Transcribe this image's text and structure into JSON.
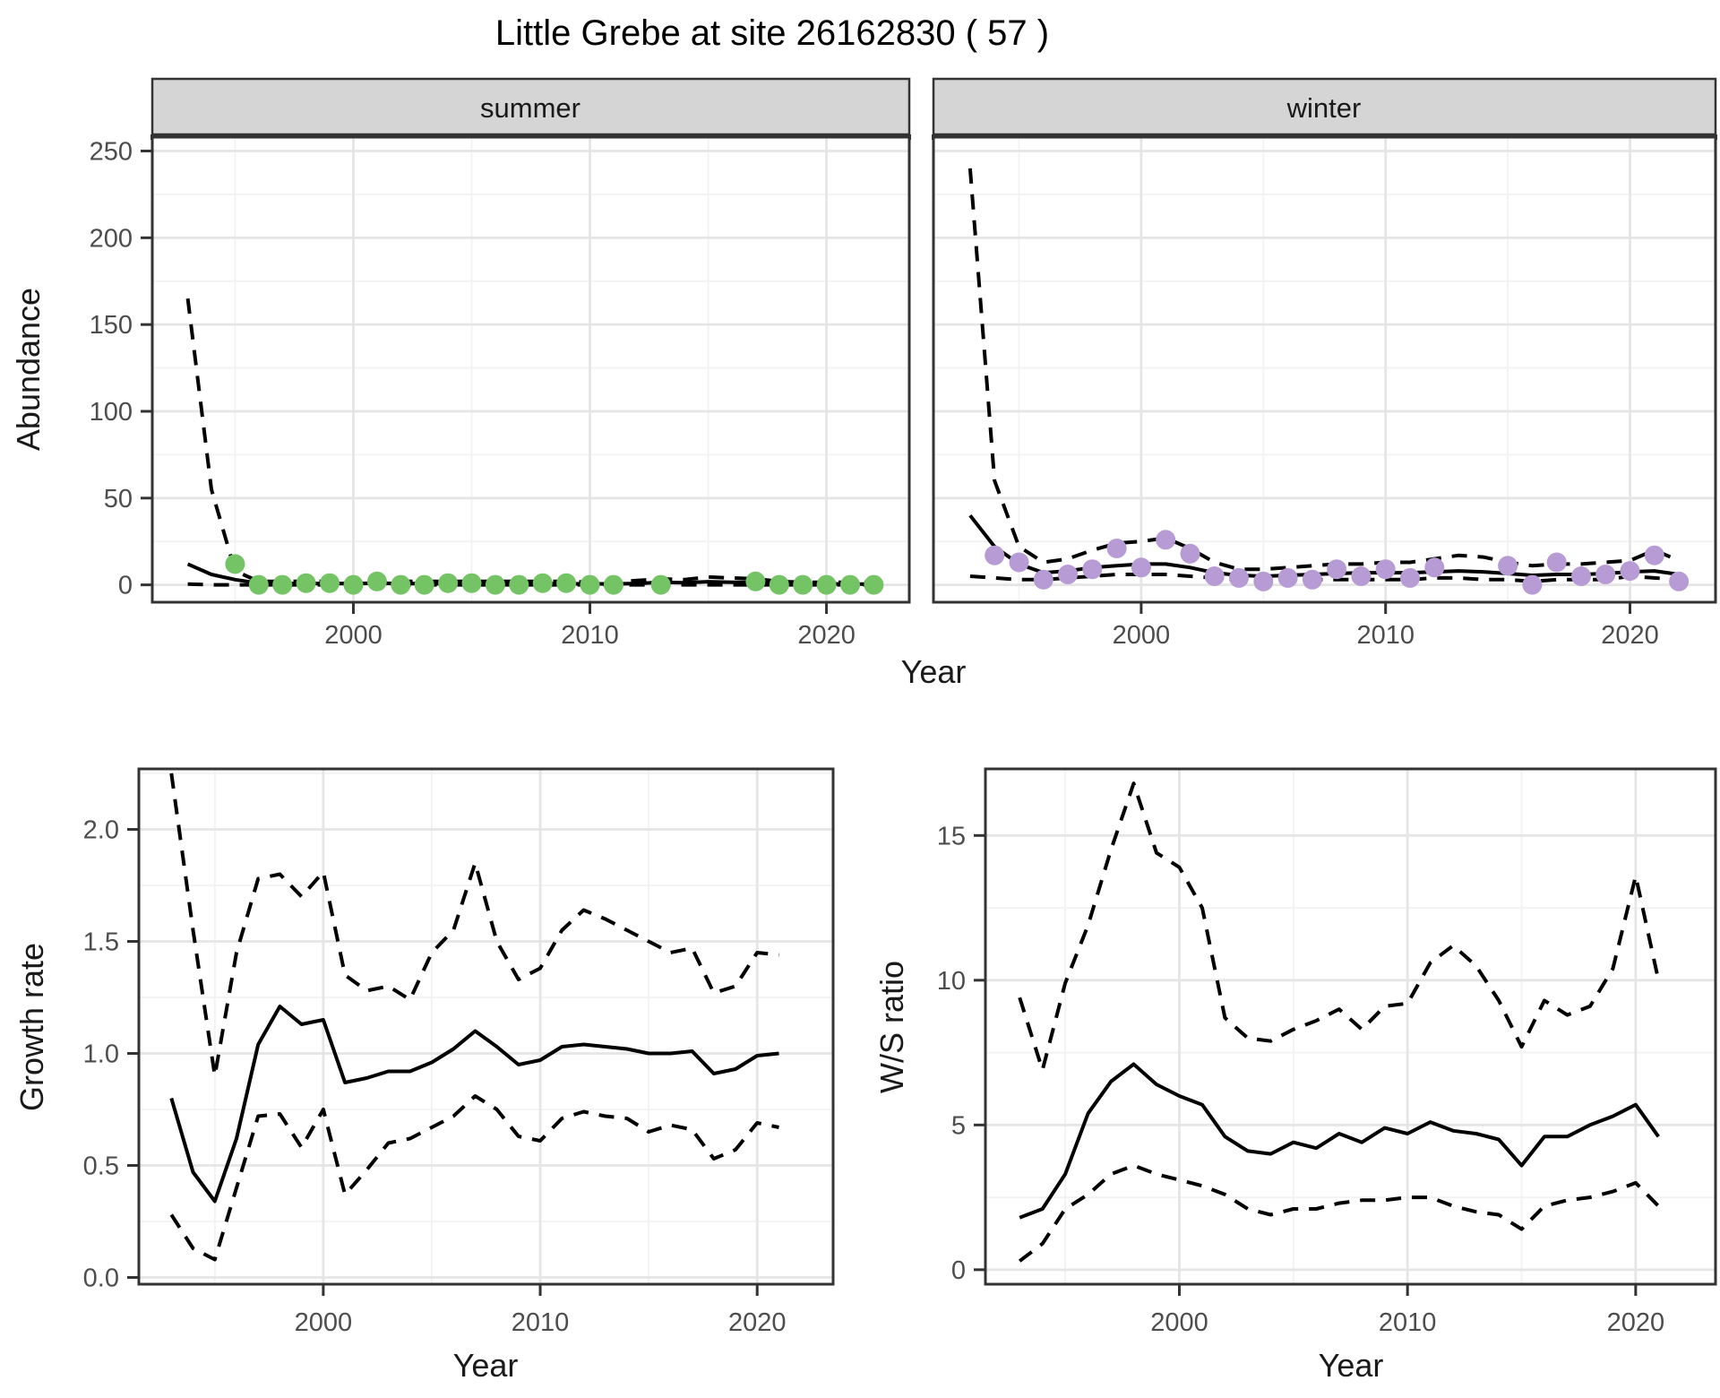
{
  "title": "Little Grebe at site 26162830 ( 57 )",
  "colors": {
    "summer_points": "#74c365",
    "winter_points": "#b79bd4",
    "line": "#000000",
    "grid_major": "#e5e5e5",
    "grid_minor": "#f2f2f2",
    "strip_bg": "#d5d5d5",
    "panel_border": "#333333",
    "tick_text": "#4d4d4d"
  },
  "chart_data": [
    {
      "id": "abundance_summer",
      "type": "line",
      "facet_label": "summer",
      "xlabel": "Year",
      "ylabel": "Abundance",
      "xlim": [
        1991.5,
        2023.5
      ],
      "ylim": [
        -10,
        258
      ],
      "x_ticks": [
        2000,
        2010,
        2020
      ],
      "x_tick_labels": [
        "2000",
        "2010",
        "2020"
      ],
      "x_minor": [
        1995,
        2005,
        2015
      ],
      "y_ticks": [
        0,
        50,
        100,
        150,
        200,
        250
      ],
      "y_tick_labels": [
        "0",
        "50",
        "100",
        "150",
        "200",
        "250"
      ],
      "y_minor": [
        25,
        75,
        125,
        175,
        225
      ],
      "grid": true,
      "legend": "none",
      "series": [
        {
          "name": "fit",
          "style": "solid",
          "x": [
            1993,
            1994,
            1995,
            1996,
            1997,
            1998,
            1999,
            2000,
            2001,
            2002,
            2003,
            2004,
            2005,
            2006,
            2007,
            2008,
            2009,
            2010,
            2011,
            2012,
            2013,
            2014,
            2015,
            2016,
            2017,
            2018,
            2019,
            2020,
            2021,
            2022
          ],
          "y": [
            12,
            6,
            3,
            1,
            0.8,
            0.8,
            0.8,
            0.8,
            1,
            0.8,
            0.7,
            0.7,
            0.7,
            0.7,
            0.7,
            0.7,
            0.7,
            0.6,
            0.6,
            0.8,
            1.5,
            1.2,
            1.8,
            1.5,
            1.5,
            0.8,
            0.6,
            0.6,
            0.5,
            0.5
          ]
        },
        {
          "name": "upper_ci",
          "style": "dashed",
          "x": [
            1993,
            1994,
            1995,
            1996,
            1997,
            1998,
            1999,
            2000,
            2001,
            2002,
            2003,
            2004,
            2005,
            2006,
            2007,
            2008,
            2009,
            2010,
            2011,
            2012,
            2013,
            2014,
            2015,
            2016,
            2017,
            2018,
            2019,
            2020,
            2021,
            2022
          ],
          "y": [
            165,
            55,
            8,
            2,
            2,
            2,
            2,
            2,
            2.5,
            2,
            2,
            2,
            2,
            2,
            2,
            2,
            2,
            1.5,
            1.5,
            2.5,
            3.5,
            3,
            4.5,
            4,
            3.5,
            2,
            1.5,
            1.5,
            1.5,
            1.5
          ]
        },
        {
          "name": "lower_ci",
          "style": "dashed",
          "x": [
            1993,
            1994,
            1995,
            1996,
            1997,
            1998,
            1999,
            2000,
            2001,
            2002,
            2003,
            2004,
            2005,
            2006,
            2007,
            2008,
            2009,
            2010,
            2011,
            2012,
            2013,
            2014,
            2015,
            2016,
            2017,
            2018,
            2019,
            2020,
            2021,
            2022
          ],
          "y": [
            0.5,
            0,
            0,
            0,
            0,
            0,
            0,
            0,
            0,
            0,
            0,
            0,
            0,
            0,
            0,
            0,
            0,
            0,
            0,
            0,
            0,
            0,
            0,
            0,
            0,
            0,
            0,
            0,
            0,
            0
          ]
        }
      ],
      "points": {
        "name": "observed_counts",
        "color": "#74c365",
        "x": [
          1995,
          1996,
          1997,
          1998,
          1999,
          2000,
          2001,
          2002,
          2003,
          2004,
          2005,
          2006,
          2007,
          2008,
          2009,
          2010,
          2011,
          2013,
          2017,
          2018,
          2019,
          2020,
          2021,
          2022
        ],
        "y": [
          12,
          0,
          0,
          1,
          1,
          0,
          2,
          0,
          0,
          1,
          1,
          0,
          0,
          1,
          1,
          0,
          0,
          0,
          2,
          0,
          0,
          0,
          0,
          0
        ]
      }
    },
    {
      "id": "abundance_winter",
      "type": "line",
      "facet_label": "winter",
      "xlabel": "Year",
      "ylabel": "Abundance",
      "xlim": [
        1991.5,
        2023.5
      ],
      "ylim": [
        -10,
        258
      ],
      "x_ticks": [
        2000,
        2010,
        2020
      ],
      "x_tick_labels": [
        "2000",
        "2010",
        "2020"
      ],
      "x_minor": [
        1995,
        2005,
        2015
      ],
      "y_ticks": [
        0,
        50,
        100,
        150,
        200,
        250
      ],
      "y_tick_labels": [
        "0",
        "50",
        "100",
        "150",
        "200",
        "250"
      ],
      "y_minor": [
        25,
        75,
        125,
        175,
        225
      ],
      "grid": true,
      "legend": "none",
      "series": [
        {
          "name": "fit",
          "style": "solid",
          "x": [
            1993,
            1994,
            1995,
            1996,
            1997,
            1998,
            1999,
            2000,
            2001,
            2002,
            2003,
            2004,
            2005,
            2006,
            2007,
            2008,
            2009,
            2010,
            2011,
            2012,
            2013,
            2014,
            2015,
            2016,
            2017,
            2018,
            2019,
            2020,
            2021,
            2022
          ],
          "y": [
            40,
            22,
            12,
            7,
            8,
            10,
            11,
            12,
            12,
            10,
            7,
            5.5,
            5,
            5.5,
            6,
            6.5,
            7,
            7,
            7,
            7.5,
            8,
            7.5,
            6.5,
            5.5,
            6,
            6,
            6.5,
            7.5,
            8,
            6
          ]
        },
        {
          "name": "upper_ci",
          "style": "dashed",
          "x": [
            1993,
            1994,
            1995,
            1996,
            1997,
            1998,
            1999,
            2000,
            2001,
            2002,
            2003,
            2004,
            2005,
            2006,
            2007,
            2008,
            2009,
            2010,
            2011,
            2012,
            2013,
            2014,
            2015,
            2016,
            2017,
            2018,
            2019,
            2020,
            2021,
            2022
          ],
          "y": [
            240,
            60,
            22,
            13,
            15,
            20,
            24,
            25,
            27,
            21,
            13,
            9,
            9,
            10,
            11,
            12,
            12,
            13,
            13,
            15,
            17,
            16,
            13,
            11,
            12,
            12,
            13,
            14,
            20,
            14
          ]
        },
        {
          "name": "lower_ci",
          "style": "dashed",
          "x": [
            1993,
            1994,
            1995,
            1996,
            1997,
            1998,
            1999,
            2000,
            2001,
            2002,
            2003,
            2004,
            2005,
            2006,
            2007,
            2008,
            2009,
            2010,
            2011,
            2012,
            2013,
            2014,
            2015,
            2016,
            2017,
            2018,
            2019,
            2020,
            2021,
            2022
          ],
          "y": [
            5,
            4,
            3,
            3,
            4,
            5,
            6,
            6,
            6,
            5,
            4,
            3,
            3,
            3,
            3,
            3,
            3,
            3,
            3,
            4,
            4,
            3,
            3,
            2,
            3,
            3,
            3,
            5,
            4,
            3
          ]
        }
      ],
      "points": {
        "name": "observed_counts",
        "color": "#b79bd4",
        "x": [
          1994,
          1995,
          1996,
          1997,
          1998,
          1999,
          2000,
          2001,
          2002,
          2003,
          2004,
          2005,
          2006,
          2007,
          2008,
          2009,
          2010,
          2011,
          2012,
          2015,
          2016,
          2017,
          2018,
          2019,
          2020,
          2021,
          2022
        ],
        "y": [
          17,
          13,
          3,
          6,
          9,
          21,
          10,
          26,
          18,
          5,
          4,
          2,
          4,
          3,
          9,
          5,
          9,
          4,
          10,
          11,
          0,
          13,
          5,
          6,
          8,
          17,
          2
        ]
      }
    },
    {
      "id": "growth_rate",
      "type": "line",
      "facet_label": "",
      "xlabel": "Year",
      "ylabel": "Growth rate",
      "xlim": [
        1991.5,
        2023.5
      ],
      "ylim": [
        -0.03,
        2.27
      ],
      "x_ticks": [
        2000,
        2010,
        2020
      ],
      "x_tick_labels": [
        "2000",
        "2010",
        "2020"
      ],
      "x_minor": [
        1995,
        2005,
        2015
      ],
      "y_ticks": [
        0,
        0.5,
        1,
        1.5,
        2
      ],
      "y_tick_labels": [
        "0.0",
        "0.5",
        "1.0",
        "1.5",
        "2.0"
      ],
      "y_minor": [
        0.25,
        0.75,
        1.25,
        1.75,
        2.25
      ],
      "grid": true,
      "legend": "none",
      "series": [
        {
          "name": "fit",
          "style": "solid",
          "x": [
            1993,
            1994,
            1995,
            1996,
            1997,
            1998,
            1999,
            2000,
            2001,
            2002,
            2003,
            2004,
            2005,
            2006,
            2007,
            2008,
            2009,
            2010,
            2011,
            2012,
            2013,
            2014,
            2015,
            2016,
            2017,
            2018,
            2019,
            2020,
            2021
          ],
          "y": [
            0.8,
            0.47,
            0.34,
            0.62,
            1.04,
            1.21,
            1.13,
            1.15,
            0.87,
            0.89,
            0.92,
            0.92,
            0.96,
            1.02,
            1.1,
            1.03,
            0.95,
            0.97,
            1.03,
            1.04,
            1.03,
            1.02,
            1.0,
            1.0,
            1.01,
            0.91,
            0.93,
            0.99,
            1.0
          ]
        },
        {
          "name": "upper_ci",
          "style": "dashed",
          "x": [
            1993,
            1994,
            1995,
            1996,
            1997,
            1998,
            1999,
            2000,
            2001,
            2002,
            2003,
            2004,
            2005,
            2006,
            2007,
            2008,
            2009,
            2010,
            2011,
            2012,
            2013,
            2014,
            2015,
            2016,
            2017,
            2018,
            2019,
            2020,
            2021
          ],
          "y": [
            2.25,
            1.55,
            0.9,
            1.45,
            1.78,
            1.8,
            1.7,
            1.81,
            1.35,
            1.28,
            1.3,
            1.24,
            1.45,
            1.55,
            1.85,
            1.5,
            1.33,
            1.38,
            1.55,
            1.64,
            1.6,
            1.55,
            1.5,
            1.45,
            1.47,
            1.27,
            1.3,
            1.45,
            1.44
          ]
        },
        {
          "name": "lower_ci",
          "style": "dashed",
          "x": [
            1993,
            1994,
            1995,
            1996,
            1997,
            1998,
            1999,
            2000,
            2001,
            2002,
            2003,
            2004,
            2005,
            2006,
            2007,
            2008,
            2009,
            2010,
            2011,
            2012,
            2013,
            2014,
            2015,
            2016,
            2017,
            2018,
            2019,
            2020,
            2021
          ],
          "y": [
            0.28,
            0.13,
            0.08,
            0.4,
            0.72,
            0.73,
            0.58,
            0.75,
            0.37,
            0.48,
            0.6,
            0.62,
            0.67,
            0.72,
            0.81,
            0.75,
            0.63,
            0.61,
            0.71,
            0.74,
            0.72,
            0.71,
            0.65,
            0.68,
            0.66,
            0.53,
            0.57,
            0.69,
            0.67
          ]
        }
      ],
      "points": null
    },
    {
      "id": "ws_ratio",
      "type": "line",
      "facet_label": "",
      "xlabel": "Year",
      "ylabel": "W/S ratio",
      "xlim": [
        1991.5,
        2023.5
      ],
      "ylim": [
        -0.5,
        17.3
      ],
      "x_ticks": [
        2000,
        2010,
        2020
      ],
      "x_tick_labels": [
        "2000",
        "2010",
        "2020"
      ],
      "x_minor": [
        1995,
        2005,
        2015
      ],
      "y_ticks": [
        0,
        5,
        10,
        15
      ],
      "y_tick_labels": [
        "0",
        "5",
        "10",
        "15"
      ],
      "y_minor": [
        2.5,
        7.5,
        12.5
      ],
      "grid": true,
      "legend": "none",
      "series": [
        {
          "name": "fit",
          "style": "solid",
          "x": [
            1993,
            1994,
            1995,
            1996,
            1997,
            1998,
            1999,
            2000,
            2001,
            2002,
            2003,
            2004,
            2005,
            2006,
            2007,
            2008,
            2009,
            2010,
            2011,
            2012,
            2013,
            2014,
            2015,
            2016,
            2017,
            2018,
            2019,
            2020,
            2021
          ],
          "y": [
            1.8,
            2.1,
            3.3,
            5.4,
            6.5,
            7.1,
            6.4,
            6.0,
            5.7,
            4.6,
            4.1,
            4.0,
            4.4,
            4.2,
            4.7,
            4.4,
            4.9,
            4.7,
            5.1,
            4.8,
            4.7,
            4.5,
            3.6,
            4.6,
            4.6,
            5.0,
            5.3,
            5.7,
            4.6
          ]
        },
        {
          "name": "upper_ci",
          "style": "dashed",
          "x": [
            1993,
            1994,
            1995,
            1996,
            1997,
            1998,
            1999,
            2000,
            2001,
            2002,
            2003,
            2004,
            2005,
            2006,
            2007,
            2008,
            2009,
            2010,
            2011,
            2012,
            2013,
            2014,
            2015,
            2016,
            2017,
            2018,
            2019,
            2020,
            2021
          ],
          "y": [
            9.4,
            6.9,
            9.9,
            11.9,
            14.5,
            16.8,
            14.4,
            13.9,
            12.5,
            8.7,
            8.0,
            7.9,
            8.3,
            8.6,
            9.0,
            8.3,
            9.1,
            9.2,
            10.6,
            11.2,
            10.5,
            9.3,
            7.7,
            9.3,
            8.8,
            9.1,
            10.4,
            13.6,
            10.0
          ]
        },
        {
          "name": "lower_ci",
          "style": "dashed",
          "x": [
            1993,
            1994,
            1995,
            1996,
            1997,
            1998,
            1999,
            2000,
            2001,
            2002,
            2003,
            2004,
            2005,
            2006,
            2007,
            2008,
            2009,
            2010,
            2011,
            2012,
            2013,
            2014,
            2015,
            2016,
            2017,
            2018,
            2019,
            2020,
            2021
          ],
          "y": [
            0.3,
            0.9,
            2.1,
            2.6,
            3.3,
            3.6,
            3.3,
            3.1,
            2.9,
            2.6,
            2.1,
            1.9,
            2.1,
            2.1,
            2.3,
            2.4,
            2.4,
            2.5,
            2.5,
            2.2,
            2.0,
            1.9,
            1.4,
            2.2,
            2.4,
            2.5,
            2.7,
            3.0,
            2.2
          ]
        }
      ],
      "points": null
    }
  ]
}
